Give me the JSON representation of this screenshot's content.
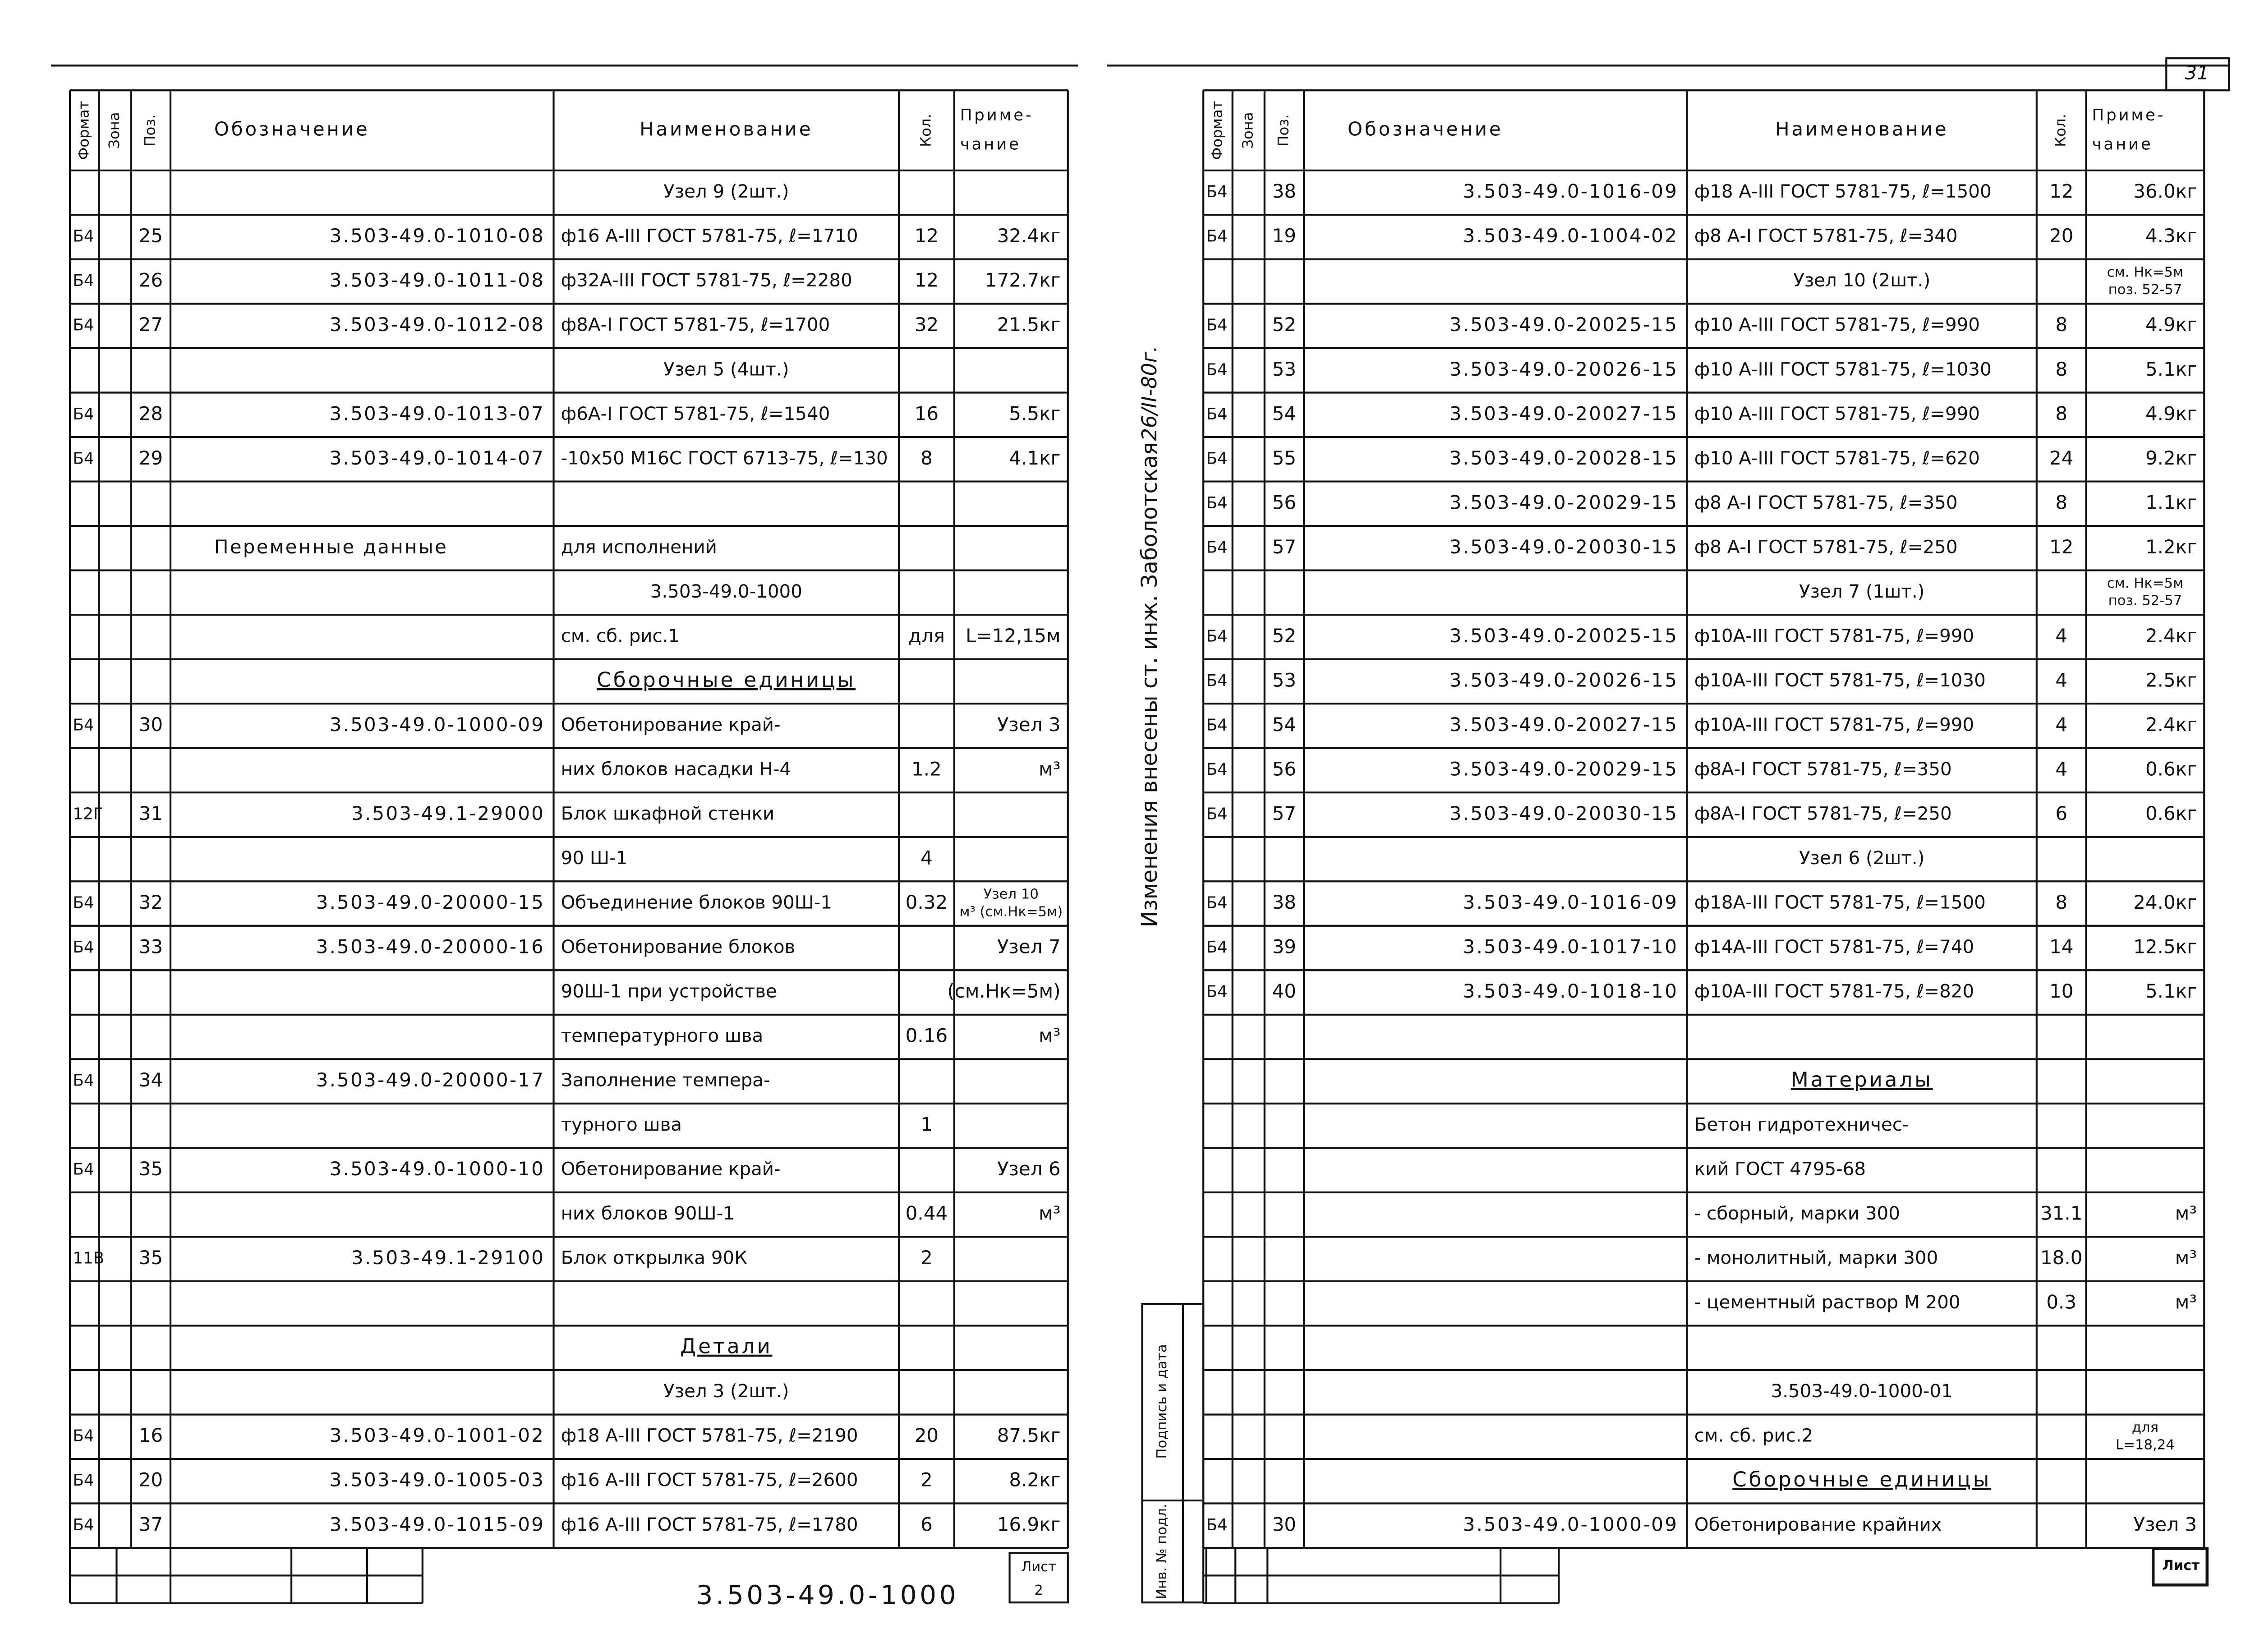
{
  "page_number": "31",
  "side_note": "Изменения внесены ст. инж. Заболотская",
  "side_date": "26/II-80г.",
  "side_stamp": [
    "Подпись и дата",
    "Инв. № подл."
  ],
  "stamp_left": {
    "designation": "3.503-49.0-1000",
    "sheet_label": "Лист",
    "sheet": "2"
  },
  "stamp_right": {
    "sheet_label": "Лист"
  },
  "left": {
    "header": [
      "Формат",
      "Зона",
      "Поз.",
      "Обозначение",
      "Наименование",
      "Кол.",
      [
        "Приме-",
        "чание"
      ]
    ],
    "rows": [
      [
        null,
        null,
        null,
        null,
        "Узел 9 (2шт.)",
        null,
        null
      ],
      [
        "Б4",
        null,
        "25",
        "3.503-49.0-1010-08",
        "ф16 А-III ГОСТ 5781-75, ℓ=1710",
        "12",
        "32.4кг"
      ],
      [
        "Б4",
        null,
        "26",
        "3.503-49.0-1011-08",
        "ф32А-III ГОСТ 5781-75, ℓ=2280",
        "12",
        "172.7кг"
      ],
      [
        "Б4",
        null,
        "27",
        "3.503-49.0-1012-08",
        "ф8А-I ГОСТ 5781-75, ℓ=1700",
        "32",
        "21.5кг"
      ],
      [
        null,
        null,
        null,
        null,
        "Узел 5 (4шт.)",
        null,
        null
      ],
      [
        "Б4",
        null,
        "28",
        "3.503-49.0-1013-07",
        "ф6А-I ГОСТ 5781-75, ℓ=1540",
        "16",
        "5.5кг"
      ],
      [
        "Б4",
        null,
        "29",
        "3.503-49.0-1014-07",
        "-10x50 М16С ГОСТ 6713-75, ℓ=130",
        "8",
        "4.1кг"
      ],
      [
        null,
        null,
        null,
        null,
        null,
        null,
        null
      ],
      [
        null,
        null,
        null,
        "Переменные данные",
        "для исполнений",
        null,
        null
      ],
      [
        null,
        null,
        null,
        null,
        "3.503-49.0-1000",
        null,
        null
      ],
      [
        null,
        null,
        null,
        null,
        "см. сб. рис.1",
        "для",
        "L=12,15м"
      ],
      [
        null,
        null,
        null,
        null,
        "Сборочные единицы",
        null,
        null
      ],
      [
        "Б4",
        null,
        "30",
        "3.503-49.0-1000-09",
        "Обетонирование край-",
        null,
        "Узел 3"
      ],
      [
        null,
        null,
        null,
        null,
        "них блоков насадки Н-4",
        "1.2",
        "м³"
      ],
      [
        "12Г",
        null,
        "31",
        "3.503-49.1-29000",
        "Блок шкафной стенки",
        null,
        null
      ],
      [
        null,
        null,
        null,
        null,
        "90 Ш-1",
        "4",
        null
      ],
      [
        "Б4",
        null,
        "32",
        "3.503-49.0-20000-15",
        "Объединение блоков 90Ш-1",
        "0.32",
        [
          "Узел 10",
          "м³ (см.Нк=5м)"
        ]
      ],
      [
        "Б4",
        null,
        "33",
        "3.503-49.0-20000-16",
        "Обетонирование блоков",
        null,
        "Узел 7"
      ],
      [
        null,
        null,
        null,
        null,
        "90Ш-1 при устройстве",
        null,
        "(см.Нк=5м)"
      ],
      [
        null,
        null,
        null,
        null,
        "температурного шва",
        "0.16",
        "м³"
      ],
      [
        "Б4",
        null,
        "34",
        "3.503-49.0-20000-17",
        "Заполнение темпера-",
        null,
        null
      ],
      [
        null,
        null,
        null,
        null,
        "турного шва",
        "1",
        null
      ],
      [
        "Б4",
        null,
        "35",
        "3.503-49.0-1000-10",
        "Обетонирование край-",
        null,
        "Узел 6"
      ],
      [
        null,
        null,
        null,
        null,
        "них блоков 90Ш-1",
        "0.44",
        "м³"
      ],
      [
        "11В",
        null,
        "35",
        "3.503-49.1-29100",
        "Блок открылка 90К",
        "2",
        null
      ],
      [
        null,
        null,
        null,
        null,
        null,
        null,
        null
      ],
      [
        null,
        null,
        null,
        null,
        "Детали",
        null,
        null
      ],
      [
        null,
        null,
        null,
        null,
        "Узел 3 (2шт.)",
        null,
        null
      ],
      [
        "Б4",
        null,
        "16",
        "3.503-49.0-1001-02",
        "ф18 А-III ГОСТ 5781-75, ℓ=2190",
        "20",
        "87.5кг"
      ],
      [
        "Б4",
        null,
        "20",
        "3.503-49.0-1005-03",
        "ф16 А-III ГОСТ 5781-75, ℓ=2600",
        "2",
        "8.2кг"
      ],
      [
        "Б4",
        null,
        "37",
        "3.503-49.0-1015-09",
        "ф16 А-III ГОСТ 5781-75, ℓ=1780",
        "6",
        "16.9кг"
      ]
    ]
  },
  "right": {
    "header": [
      "Формат",
      "Зона",
      "Поз.",
      "Обозначение",
      "Наименование",
      "Кол.",
      [
        "Приме-",
        "чание"
      ]
    ],
    "rows": [
      [
        "Б4",
        null,
        "38",
        "3.503-49.0-1016-09",
        "ф18 А-III ГОСТ 5781-75, ℓ=1500",
        "12",
        "36.0кг"
      ],
      [
        "Б4",
        null,
        "19",
        "3.503-49.0-1004-02",
        "ф8 А-I ГОСТ 5781-75, ℓ=340",
        "20",
        "4.3кг"
      ],
      [
        null,
        null,
        null,
        null,
        "Узел 10 (2шт.)",
        null,
        [
          "см. Нк=5м",
          "поз. 52-57"
        ]
      ],
      [
        "Б4",
        null,
        "52",
        "3.503-49.0-20025-15",
        "ф10 А-III ГОСТ 5781-75, ℓ=990",
        "8",
        "4.9кг"
      ],
      [
        "Б4",
        null,
        "53",
        "3.503-49.0-20026-15",
        "ф10 А-III ГОСТ 5781-75, ℓ=1030",
        "8",
        "5.1кг"
      ],
      [
        "Б4",
        null,
        "54",
        "3.503-49.0-20027-15",
        "ф10 А-III ГОСТ 5781-75, ℓ=990",
        "8",
        "4.9кг"
      ],
      [
        "Б4",
        null,
        "55",
        "3.503-49.0-20028-15",
        "ф10 А-III ГОСТ 5781-75, ℓ=620",
        "24",
        "9.2кг"
      ],
      [
        "Б4",
        null,
        "56",
        "3.503-49.0-20029-15",
        "ф8 А-I ГОСТ 5781-75, ℓ=350",
        "8",
        "1.1кг"
      ],
      [
        "Б4",
        null,
        "57",
        "3.503-49.0-20030-15",
        "ф8 А-I ГОСТ 5781-75, ℓ=250",
        "12",
        "1.2кг"
      ],
      [
        null,
        null,
        null,
        null,
        "Узел 7 (1шт.)",
        null,
        [
          "см. Нк=5м",
          "поз. 52-57"
        ]
      ],
      [
        "Б4",
        null,
        "52",
        "3.503-49.0-20025-15",
        "ф10А-III ГОСТ 5781-75, ℓ=990",
        "4",
        "2.4кг"
      ],
      [
        "Б4",
        null,
        "53",
        "3.503-49.0-20026-15",
        "ф10А-III ГОСТ 5781-75, ℓ=1030",
        "4",
        "2.5кг"
      ],
      [
        "Б4",
        null,
        "54",
        "3.503-49.0-20027-15",
        "ф10А-III ГОСТ 5781-75, ℓ=990",
        "4",
        "2.4кг"
      ],
      [
        "Б4",
        null,
        "56",
        "3.503-49.0-20029-15",
        "ф8А-I ГОСТ 5781-75, ℓ=350",
        "4",
        "0.6кг"
      ],
      [
        "Б4",
        null,
        "57",
        "3.503-49.0-20030-15",
        "ф8А-I ГОСТ 5781-75, ℓ=250",
        "6",
        "0.6кг"
      ],
      [
        null,
        null,
        null,
        null,
        "Узел 6 (2шт.)",
        null,
        null
      ],
      [
        "Б4",
        null,
        "38",
        "3.503-49.0-1016-09",
        "ф18А-III ГОСТ 5781-75, ℓ=1500",
        "8",
        "24.0кг"
      ],
      [
        "Б4",
        null,
        "39",
        "3.503-49.0-1017-10",
        "ф14А-III ГОСТ 5781-75, ℓ=740",
        "14",
        "12.5кг"
      ],
      [
        "Б4",
        null,
        "40",
        "3.503-49.0-1018-10",
        "ф10А-III ГОСТ 5781-75, ℓ=820",
        "10",
        "5.1кг"
      ],
      [
        null,
        null,
        null,
        null,
        null,
        null,
        null
      ],
      [
        null,
        null,
        null,
        null,
        "Материалы",
        null,
        null
      ],
      [
        null,
        null,
        null,
        null,
        "Бетон гидротехничес-",
        null,
        null
      ],
      [
        null,
        null,
        null,
        null,
        "кий ГОСТ 4795-68",
        null,
        null
      ],
      [
        null,
        null,
        null,
        null,
        "- сборный, марки 300",
        "31.1",
        "м³"
      ],
      [
        null,
        null,
        null,
        null,
        "- монолитный, марки 300",
        "18.0",
        "м³"
      ],
      [
        null,
        null,
        null,
        null,
        "- цементный раствор М 200",
        "0.3",
        "м³"
      ],
      [
        null,
        null,
        null,
        null,
        null,
        null,
        null
      ],
      [
        null,
        null,
        null,
        null,
        "3.503-49.0-1000-01",
        null,
        null
      ],
      [
        null,
        null,
        null,
        null,
        "см. сб. рис.2",
        null,
        [
          "для",
          "L=18,24"
        ]
      ],
      [
        null,
        null,
        null,
        null,
        "Сборочные единицы",
        null,
        null
      ],
      [
        "Б4",
        null,
        "30",
        "3.503-49.0-1000-09",
        "Обетонирование крайних",
        null,
        "Узел 3"
      ]
    ]
  }
}
